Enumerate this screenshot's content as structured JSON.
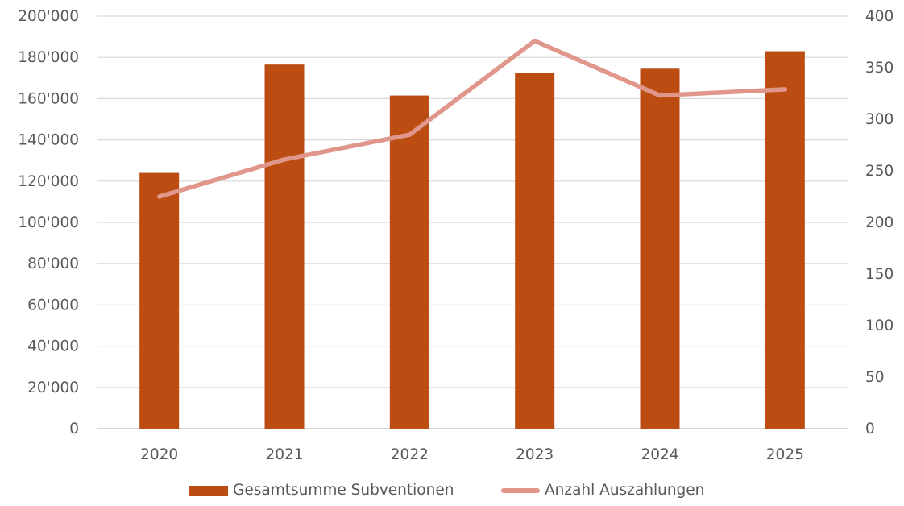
{
  "chart_data": {
    "type": "bar",
    "categories": [
      "2020",
      "2021",
      "2022",
      "2023",
      "2024",
      "2025"
    ],
    "series": [
      {
        "name": "Gesamtsumme Subventionen",
        "type": "bar",
        "axis": "left",
        "color": "#BB4D12",
        "values": [
          124000,
          176500,
          161500,
          172500,
          174500,
          183000
        ]
      },
      {
        "name": "Anzahl Auszahlungen",
        "type": "line",
        "axis": "right",
        "color": "#E0968A",
        "values": [
          225,
          261,
          285,
          376,
          323,
          329
        ]
      }
    ],
    "y_left": {
      "lim": [
        0,
        200000
      ],
      "ticks": [
        "0",
        "20'000",
        "40'000",
        "60'000",
        "80'000",
        "100'000",
        "120'000",
        "140'000",
        "160'000",
        "180'000",
        "200'000"
      ]
    },
    "y_right": {
      "lim": [
        0,
        400
      ],
      "ticks": [
        "0",
        "50",
        "100",
        "150",
        "200",
        "250",
        "300",
        "350",
        "400"
      ]
    },
    "grid": true,
    "legend_position": "bottom"
  }
}
